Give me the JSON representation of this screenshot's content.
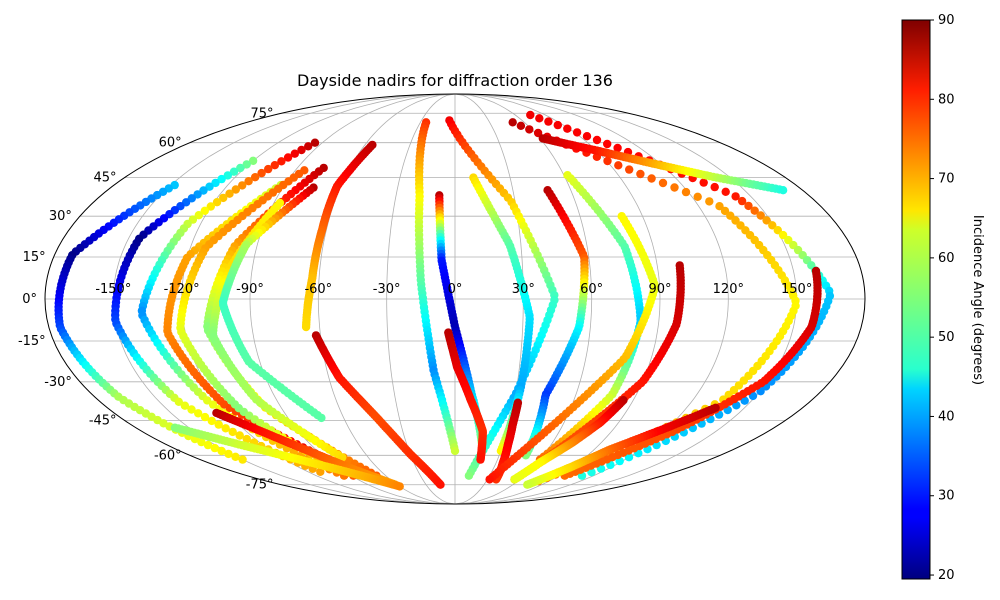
{
  "chart_data": {
    "type": "scatter",
    "projection": "mollweide",
    "title": "Dayside nadirs for diffraction order 136",
    "grid": true,
    "lon_ticks": [
      -150,
      -120,
      -90,
      -60,
      -30,
      0,
      30,
      60,
      90,
      120,
      150
    ],
    "lon_tick_labels": [
      "-150°",
      "-120°",
      "-90°",
      "-60°",
      "-30°",
      "0°",
      "30°",
      "60°",
      "90°",
      "120°",
      "150°"
    ],
    "lat_ticks": [
      75,
      60,
      45,
      30,
      15,
      0,
      -15,
      -30,
      -45,
      -60,
      -75
    ],
    "lat_tick_labels": [
      "75°",
      "60°",
      "45°",
      "30°",
      "15°",
      "0°",
      "-15°",
      "-30°",
      "-45°",
      "-60°",
      "-75°"
    ],
    "colorbar": {
      "label": "Incidence Angle (degrees)",
      "min": 19.5,
      "max": 90,
      "colormap": "jet",
      "ticks": [
        20,
        30,
        40,
        50,
        60,
        70,
        80,
        90
      ],
      "tick_labels": [
        "20",
        "30",
        "40",
        "50",
        "60",
        "70",
        "80",
        "90"
      ],
      "position": "right"
    },
    "tracks": [
      {
        "lat_range": [
          42,
          -62
        ],
        "lon": [
          -148,
          -172,
          -175,
          -168,
          -150
        ],
        "inc": [
          42,
          20,
          33,
          58,
          65
        ]
      },
      {
        "lat_range": [
          52,
          -68
        ],
        "lon": [
          -120,
          -145,
          -150,
          -140,
          -110
        ],
        "inc": [
          55,
          20,
          33,
          62,
          70
        ]
      },
      {
        "lat_range": [
          60,
          -70
        ],
        "lon": [
          -95,
          -126,
          -138,
          -125,
          -96
        ],
        "inc": [
          86,
          60,
          38,
          62,
          73
        ]
      },
      {
        "lat_range": [
          42,
          -66
        ],
        "lon": [
          -92,
          -120,
          -128,
          -118,
          -85
        ],
        "inc": [
          60,
          70,
          72,
          76,
          86
        ]
      },
      {
        "lat_range": [
          49,
          -70
        ],
        "lon": [
          -75,
          -100,
          -110,
          -98,
          -68
        ],
        "inc": [
          86,
          70,
          55,
          65,
          75
        ]
      },
      {
        "lat_range": [
          48,
          -70
        ],
        "lon": [
          -85,
          -113,
          -122,
          -112,
          -88
        ],
        "inc": [
          75,
          70,
          62,
          55,
          75
        ]
      },
      {
        "lat_range": [
          35,
          -61
        ],
        "lon": [
          -87,
          -100,
          -108,
          -100,
          -78
        ],
        "inc": [
          64,
          66,
          55,
          58,
          66
        ]
      },
      {
        "lat_range": [
          41,
          -44
        ],
        "lon": [
          -74,
          -95,
          -102,
          -95,
          -72
        ],
        "inc": [
          86,
          58,
          50,
          52,
          52
        ]
      },
      {
        "lat_range": [
          59,
          -10
        ],
        "lon": [
          -55,
          -62,
          -62,
          -63,
          -66
        ],
        "inc": [
          86,
          80,
          74,
          68,
          66
        ]
      },
      {
        "lat_range": [
          -13,
          -75
        ],
        "lon": [
          -62,
          -55,
          -42,
          -30,
          -15
        ],
        "inc": [
          86,
          80,
          76,
          78,
          80
        ]
      },
      {
        "lat_range": [
          70,
          -58
        ],
        "lon": [
          -25,
          -18,
          -15,
          -10,
          0
        ],
        "inc": [
          78,
          64,
          52,
          38,
          60
        ]
      },
      {
        "lat_range": [
          38,
          -58
        ],
        "lon": [
          -8,
          -6,
          0,
          8,
          18
        ],
        "inc": [
          86,
          30,
          23,
          42,
          58
        ]
      },
      {
        "lat_range": [
          71,
          -70
        ],
        "lon": [
          -5,
          28,
          44,
          30,
          12
        ],
        "inc": [
          82,
          67,
          50,
          40,
          55
        ]
      },
      {
        "lat_range": [
          -12,
          -62
        ],
        "lon": [
          -3,
          1,
          8,
          16,
          18
        ],
        "inc": [
          86,
          83,
          80,
          78,
          80
        ]
      },
      {
        "lat_range": [
          45,
          -58
        ],
        "lon": [
          10,
          25,
          33,
          32,
          30
        ],
        "inc": [
          66,
          52,
          44,
          40,
          64
        ]
      },
      {
        "lat_range": [
          40,
          -60
        ],
        "lon": [
          48,
          58,
          55,
          45,
          48
        ],
        "inc": [
          86,
          75,
          46,
          32,
          55
        ]
      },
      {
        "lat_range": [
          46,
          -62
        ],
        "lon": [
          62,
          77,
          82,
          78,
          60
        ],
        "inc": [
          62,
          52,
          42,
          60,
          74
        ]
      },
      {
        "lat_range": [
          -38,
          -72
        ],
        "lon": [
          32,
          32,
          33,
          35,
          38
        ],
        "inc": [
          86,
          84,
          82,
          80,
          78
        ]
      },
      {
        "lat_range": [
          30,
          -72
        ],
        "lon": [
          80,
          88,
          78,
          55,
          32
        ],
        "inc": [
          64,
          62,
          68,
          74,
          80
        ]
      },
      {
        "lat_range": [
          12,
          -72
        ],
        "lon": [
          100,
          98,
          90,
          72,
          55
        ],
        "inc": [
          86,
          84,
          80,
          76,
          75
        ]
      },
      {
        "lat_range": [
          -37,
          -72
        ],
        "lon": [
          85,
          80,
          72,
          62,
          55
        ],
        "inc": [
          86,
          80,
          72,
          64,
          62
        ]
      },
      {
        "lat_range": [
          70,
          -73
        ],
        "lon": [
          50,
          130,
          150,
          135,
          80
        ],
        "inc": [
          86,
          70,
          64,
          66,
          74
        ]
      },
      {
        "lat_range": [
          74,
          -70
        ],
        "lon": [
          75,
          142,
          165,
          150,
          110
        ],
        "inc": [
          82,
          80,
          42,
          38,
          48
        ]
      },
      {
        "lat_range": [
          10,
          -70
        ],
        "lon": [
          160,
          158,
          148,
          125,
          95
        ],
        "inc": [
          86,
          84,
          80,
          76,
          74
        ]
      },
      {
        "lat_range": [
          62,
          40
        ],
        "lon": [
          62,
          90,
          115,
          140,
          170
        ],
        "inc": [
          86,
          80,
          70,
          60,
          48
        ]
      },
      {
        "lat_range": [
          -40,
          -75
        ],
        "lon": [
          135,
          118,
          100,
          88,
          75
        ],
        "inc": [
          86,
          82,
          74,
          66,
          60
        ]
      },
      {
        "lat_range": [
          -42,
          -75
        ],
        "lon": [
          -126,
          -110,
          -95,
          -80,
          -62
        ],
        "inc": [
          86,
          80,
          76,
          72,
          70
        ]
      },
      {
        "lat_range": [
          -48,
          -76
        ],
        "lon": [
          -158,
          -135,
          -110,
          -85,
          -60
        ],
        "inc": [
          55,
          60,
          64,
          68,
          72
        ]
      }
    ]
  }
}
